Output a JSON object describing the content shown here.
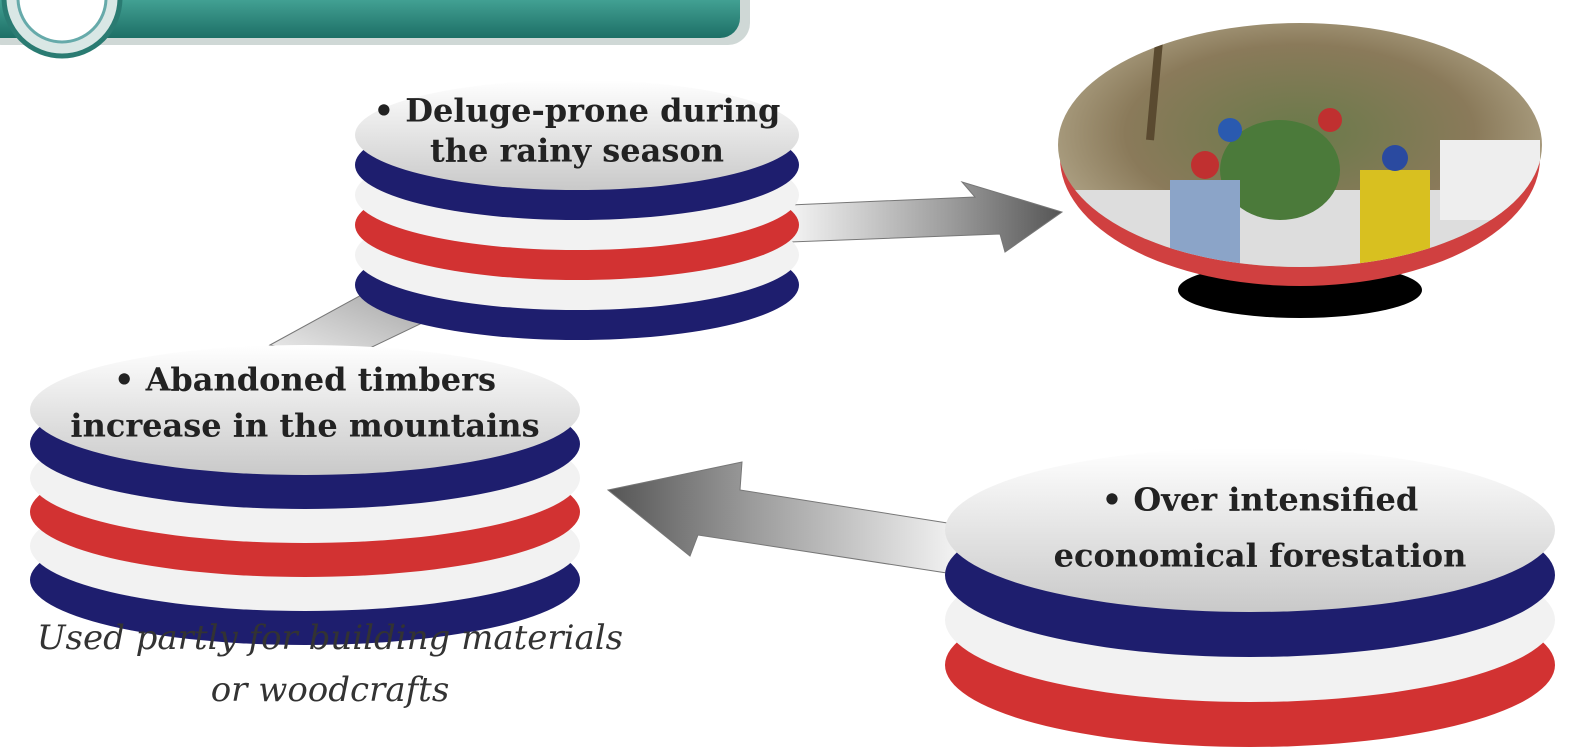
{
  "nodes": [
    {
      "label": [
        "• Deluge-prone during",
        "the rainy season"
      ]
    },
    {
      "label": [
        "• Abandoned timbers",
        "increase in the mountains"
      ]
    },
    {
      "label": [
        "• Over intensified",
        "economical forestation"
      ]
    }
  ],
  "caption": [
    "Used partly for building materials",
    "or woodcrafts"
  ]
}
